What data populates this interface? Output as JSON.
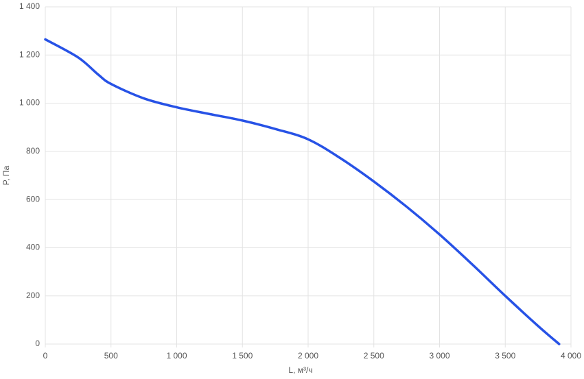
{
  "chart_data": {
    "type": "line",
    "x_label": "L, м³/ч",
    "y_label": "P, Па",
    "x": [
      0,
      250,
      400,
      500,
      750,
      1000,
      1250,
      1500,
      1750,
      2000,
      2250,
      2500,
      2750,
      3000,
      3250,
      3500,
      3750,
      3910
    ],
    "series": [
      {
        "name": "P",
        "color": "#2752e6",
        "values": [
          1265,
          1190,
          1120,
          1080,
          1020,
          983,
          955,
          928,
          893,
          850,
          770,
          675,
          570,
          455,
          330,
          200,
          75,
          0
        ]
      }
    ],
    "xlim": [
      0,
      4000
    ],
    "xticks": [
      0,
      500,
      {
        "value": 1000,
        "label": "1 000"
      },
      {
        "value": 1500,
        "label": "1 500"
      },
      {
        "value": 2000,
        "label": "2 000"
      },
      {
        "value": 2500,
        "label": "2 500"
      },
      {
        "value": 3000,
        "label": "3 000"
      },
      {
        "value": 3500,
        "label": "3 500"
      },
      {
        "value": 4000,
        "label": "4 000"
      }
    ],
    "ylim": [
      0,
      1400
    ],
    "yticks": [
      0,
      200,
      400,
      600,
      800,
      {
        "value": 1000,
        "label": "1 000"
      },
      {
        "value": 1200,
        "label": "1 200"
      },
      {
        "value": 1400,
        "label": "1 400"
      }
    ],
    "grid": true
  }
}
